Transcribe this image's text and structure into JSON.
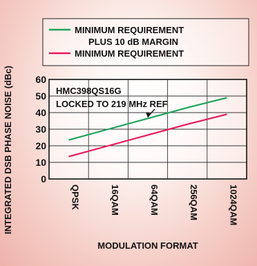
{
  "chart_data": {
    "type": "line",
    "title": "",
    "xlabel": "MODULATION FORMAT",
    "ylabel": "INTEGRATED DSB PHASE NOISE (dBc)",
    "categories": [
      "QPSK",
      "16QAM",
      "64QAM",
      "256QAM",
      "1024QAM"
    ],
    "ylim": [
      0,
      60
    ],
    "yticks": [
      "0",
      "10",
      "20",
      "30",
      "40",
      "50",
      "60"
    ],
    "grid": true,
    "legend_position": "top",
    "series": [
      {
        "name_lines": [
          "MINIMUM REQUIREMENT",
          "PLUS 10 dB MARGIN"
        ],
        "color": "#1fa35b",
        "values": [
          23.5,
          30,
          36.5,
          43,
          49
        ]
      },
      {
        "name_lines": [
          "MINIMUM REQUIREMENT"
        ],
        "color": "#e8195e",
        "values": [
          13.5,
          20,
          26.5,
          33,
          39
        ]
      }
    ],
    "annotation": {
      "lines": [
        "HMC398QS16G",
        "LOCKED TO 219 MHz REF"
      ],
      "arrow_target": {
        "category": "64QAM",
        "value": 36.5
      }
    }
  }
}
